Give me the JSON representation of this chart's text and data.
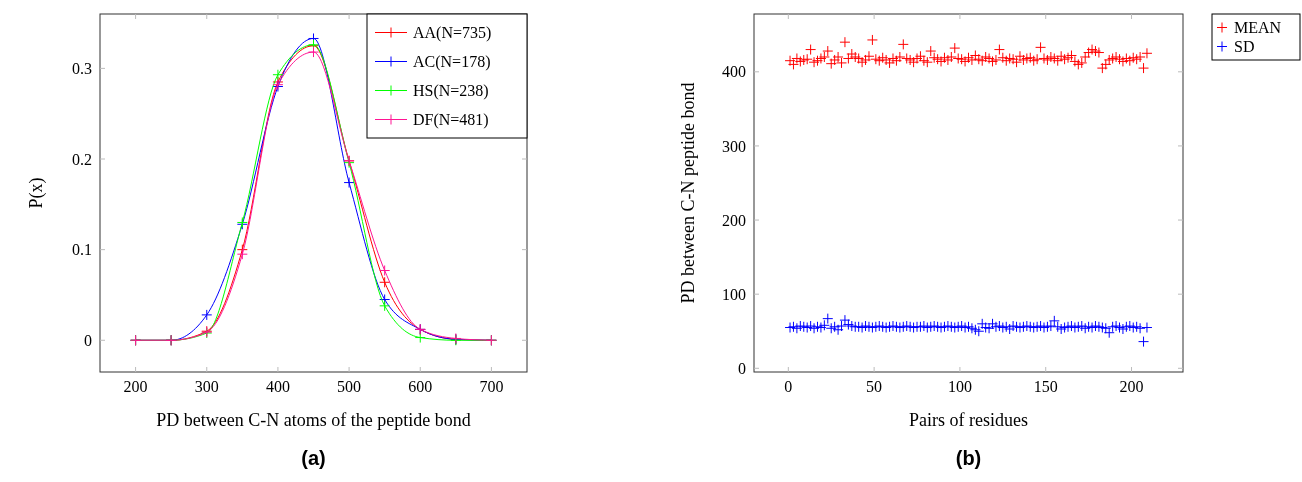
{
  "chart_data": [
    {
      "type": "line",
      "xlabel": "PD between C-N atoms of the peptide bond",
      "ylabel": "P(x)",
      "annotations": [
        "(a)"
      ],
      "x": [
        200,
        250,
        300,
        350,
        400,
        450,
        500,
        550,
        600,
        650,
        700
      ],
      "xlim": [
        150,
        750
      ],
      "xticks": [
        200,
        300,
        400,
        500,
        600,
        700
      ],
      "ylim": [
        -0.035,
        0.36
      ],
      "yticks": [
        0,
        0.1,
        0.2,
        0.3
      ],
      "marker": "cross",
      "legend": "top right",
      "grid": false,
      "series": [
        {
          "name": "AA(N=735)",
          "color": "#ff0000",
          "values": [
            0,
            0,
            0.01,
            0.1,
            0.285,
            0.325,
            0.198,
            0.064,
            0.012,
            0.001,
            0
          ]
        },
        {
          "name": "AC(N=178)",
          "color": "#0000ff",
          "values": [
            0,
            0,
            0.028,
            0.128,
            0.28,
            0.333,
            0.174,
            0.045,
            0.012,
            0.001,
            0
          ]
        },
        {
          "name": "HS(N=238)",
          "color": "#00ff00",
          "values": [
            0,
            0,
            0.008,
            0.13,
            0.293,
            0.326,
            0.196,
            0.038,
            0.003,
            0,
            0
          ]
        },
        {
          "name": "DF(N=481)",
          "color": "#ff1493",
          "values": [
            0,
            0,
            0.009,
            0.095,
            0.282,
            0.318,
            0.198,
            0.077,
            0.012,
            0.002,
            0
          ]
        }
      ]
    },
    {
      "type": "scatter",
      "xlabel": "Pairs of residues",
      "ylabel": "PD between C-N peptide bond",
      "annotations": [
        "(b)"
      ],
      "x": [
        1,
        3,
        5,
        7,
        9,
        11,
        13,
        15,
        17,
        19,
        21,
        23,
        25,
        27,
        29,
        31,
        33,
        35,
        37,
        39,
        41,
        43,
        45,
        47,
        49,
        51,
        53,
        55,
        57,
        59,
        61,
        63,
        65,
        67,
        69,
        71,
        73,
        75,
        77,
        79,
        81,
        83,
        85,
        87,
        89,
        91,
        93,
        95,
        97,
        99,
        101,
        103,
        105,
        107,
        109,
        111,
        113,
        115,
        117,
        119,
        121,
        123,
        125,
        127,
        129,
        131,
        133,
        135,
        137,
        139,
        141,
        143,
        145,
        147,
        149,
        151,
        153,
        155,
        157,
        159,
        161,
        163,
        165,
        167,
        169,
        171,
        173,
        175,
        177,
        179,
        181,
        183,
        185,
        187,
        189,
        191,
        193,
        195,
        197,
        199,
        201,
        203,
        205,
        207,
        209
      ],
      "xlim": [
        -20,
        230
      ],
      "xticks": [
        0,
        50,
        100,
        150,
        200
      ],
      "ylim": [
        -5,
        478
      ],
      "yticks": [
        0,
        100,
        200,
        300,
        400
      ],
      "marker": "cross",
      "legend": "right",
      "grid": false,
      "series": [
        {
          "name": "MEAN",
          "color": "#ff0000",
          "values": [
            415,
            410,
            418,
            414,
            416,
            417,
            430,
            413,
            415,
            418,
            420,
            428,
            411,
            416,
            420,
            412,
            440,
            418,
            424,
            420,
            418,
            413,
            416,
            421,
            443,
            417,
            415,
            419,
            416,
            412,
            418,
            415,
            420,
            437,
            418,
            416,
            413,
            418,
            421,
            415,
            413,
            428,
            419,
            417,
            414,
            419,
            416,
            420,
            432,
            418,
            417,
            414,
            419,
            416,
            422,
            417,
            415,
            420,
            418,
            414,
            416,
            430,
            419,
            415,
            418,
            417,
            413,
            421,
            416,
            418,
            419,
            415,
            417,
            433,
            418,
            416,
            420,
            418,
            415,
            421,
            417,
            419,
            422,
            414,
            410,
            412,
            420,
            426,
            430,
            428,
            426,
            405,
            410,
            416,
            418,
            420,
            417,
            414,
            418,
            415,
            419,
            417,
            420,
            405,
            425
          ]
        },
        {
          "name": "SD",
          "color": "#0000ff",
          "values": [
            55,
            56,
            54,
            57,
            56,
            55,
            57,
            54,
            56,
            55,
            58,
            67,
            54,
            56,
            52,
            57,
            65,
            59,
            57,
            56,
            56,
            55,
            57,
            56,
            55,
            56,
            57,
            56,
            55,
            56,
            57,
            56,
            55,
            56,
            57,
            56,
            55,
            56,
            56,
            57,
            55,
            56,
            57,
            56,
            55,
            56,
            57,
            56,
            55,
            56,
            57,
            55,
            56,
            54,
            52,
            50,
            60,
            55,
            54,
            60,
            56,
            57,
            55,
            56,
            53,
            57,
            56,
            55,
            56,
            57,
            56,
            55,
            56,
            57,
            55,
            56,
            57,
            64,
            56,
            53,
            55,
            56,
            57,
            55,
            56,
            57,
            54,
            56,
            55,
            57,
            56,
            55,
            54,
            48,
            56,
            57,
            55,
            53,
            56,
            57,
            55,
            56,
            54,
            36,
            55
          ]
        }
      ]
    }
  ]
}
